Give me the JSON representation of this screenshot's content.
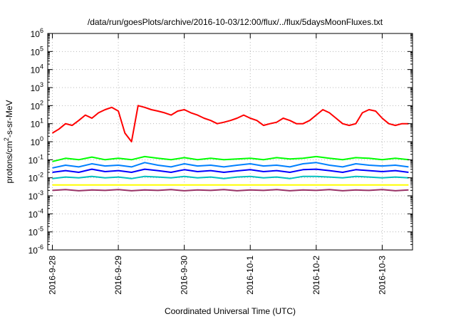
{
  "chart_data": {
    "type": "line",
    "title": "/data/run/goesPlots/archive/2016-10-03/12:00/flux/../flux/5daysMoonFluxes.txt",
    "xlabel": "Coordinated Universal Time (UTC)",
    "ylabel": {
      "pre": "protons/cm",
      "sup": "2",
      "post": "-s-sr-MeV"
    },
    "yscale": "log",
    "ylim_exp": [
      -6,
      6
    ],
    "y_ticks": [
      {
        "base": "10",
        "exp": "6"
      },
      {
        "base": "10",
        "exp": "5"
      },
      {
        "base": "10",
        "exp": "4"
      },
      {
        "base": "10",
        "exp": "3"
      },
      {
        "base": "10",
        "exp": "2"
      },
      {
        "base": "10",
        "exp": "1"
      },
      {
        "base": "10",
        "exp": "0"
      },
      {
        "base": "10",
        "exp": "-1"
      },
      {
        "base": "10",
        "exp": "-2"
      },
      {
        "base": "10",
        "exp": "-3"
      },
      {
        "base": "10",
        "exp": "-4"
      },
      {
        "base": "10",
        "exp": "-5"
      },
      {
        "base": "10",
        "exp": "-6"
      }
    ],
    "x_ticks": [
      "2016-9-28",
      "2016-9-29",
      "2016-9-30",
      "2016-10-1",
      "2016-10-2",
      "2016-10-3"
    ],
    "xlim_days": [
      -0.07,
      5.46
    ],
    "grid": true,
    "series": [
      {
        "color": "#ff0000",
        "x": [
          0.0,
          0.1,
          0.2,
          0.3,
          0.4,
          0.5,
          0.6,
          0.7,
          0.8,
          0.9,
          1.0,
          1.1,
          1.2,
          1.3,
          1.4,
          1.5,
          1.6,
          1.7,
          1.8,
          1.9,
          2.0,
          2.1,
          2.2,
          2.3,
          2.4,
          2.5,
          2.6,
          2.7,
          2.8,
          2.9,
          3.0,
          3.1,
          3.2,
          3.3,
          3.4,
          3.5,
          3.6,
          3.7,
          3.8,
          3.9,
          4.0,
          4.1,
          4.2,
          4.3,
          4.4,
          4.5,
          4.6,
          4.7,
          4.8,
          4.9,
          5.0,
          5.1,
          5.2,
          5.3,
          5.4
        ],
        "y": [
          3,
          5,
          10,
          8,
          15,
          30,
          20,
          40,
          60,
          80,
          50,
          3,
          1,
          100,
          80,
          60,
          50,
          40,
          30,
          50,
          60,
          40,
          30,
          20,
          15,
          10,
          12,
          15,
          20,
          30,
          20,
          15,
          8,
          10,
          12,
          20,
          15,
          10,
          10,
          15,
          30,
          60,
          40,
          20,
          10,
          8,
          10,
          40,
          60,
          50,
          20,
          10,
          8,
          10,
          10
        ]
      },
      {
        "color": "#00ff00",
        "x": [
          0.0,
          0.2,
          0.4,
          0.6,
          0.8,
          1.0,
          1.2,
          1.4,
          1.6,
          1.8,
          2.0,
          2.2,
          2.4,
          2.6,
          2.8,
          3.0,
          3.2,
          3.4,
          3.6,
          3.8,
          4.0,
          4.2,
          4.4,
          4.6,
          4.8,
          5.0,
          5.2,
          5.4
        ],
        "y": [
          0.08,
          0.12,
          0.1,
          0.14,
          0.1,
          0.12,
          0.1,
          0.15,
          0.12,
          0.1,
          0.13,
          0.1,
          0.12,
          0.1,
          0.11,
          0.12,
          0.1,
          0.13,
          0.11,
          0.12,
          0.15,
          0.12,
          0.1,
          0.13,
          0.12,
          0.1,
          0.12,
          0.1
        ]
      },
      {
        "color": "#0080ff",
        "x": [
          0.0,
          0.2,
          0.4,
          0.6,
          0.8,
          1.0,
          1.2,
          1.4,
          1.6,
          1.8,
          2.0,
          2.2,
          2.4,
          2.6,
          2.8,
          3.0,
          3.2,
          3.4,
          3.6,
          3.8,
          4.0,
          4.2,
          4.4,
          4.6,
          4.8,
          5.0,
          5.2,
          5.4
        ],
        "y": [
          0.035,
          0.05,
          0.04,
          0.06,
          0.045,
          0.05,
          0.04,
          0.07,
          0.05,
          0.04,
          0.06,
          0.045,
          0.05,
          0.04,
          0.05,
          0.06,
          0.045,
          0.05,
          0.04,
          0.06,
          0.07,
          0.05,
          0.04,
          0.06,
          0.05,
          0.045,
          0.05,
          0.04
        ]
      },
      {
        "color": "#0000ff",
        "x": [
          0.0,
          0.2,
          0.4,
          0.6,
          0.8,
          1.0,
          1.2,
          1.4,
          1.6,
          1.8,
          2.0,
          2.2,
          2.4,
          2.6,
          2.8,
          3.0,
          3.2,
          3.4,
          3.6,
          3.8,
          4.0,
          4.2,
          4.4,
          4.6,
          4.8,
          5.0,
          5.2,
          5.4
        ],
        "y": [
          0.02,
          0.025,
          0.02,
          0.03,
          0.022,
          0.025,
          0.02,
          0.03,
          0.025,
          0.02,
          0.028,
          0.022,
          0.025,
          0.02,
          0.024,
          0.028,
          0.022,
          0.025,
          0.02,
          0.028,
          0.03,
          0.025,
          0.02,
          0.028,
          0.025,
          0.022,
          0.025,
          0.02
        ]
      },
      {
        "color": "#00c0c0",
        "x": [
          0.0,
          0.2,
          0.4,
          0.6,
          0.8,
          1.0,
          1.2,
          1.4,
          1.6,
          1.8,
          2.0,
          2.2,
          2.4,
          2.6,
          2.8,
          3.0,
          3.2,
          3.4,
          3.6,
          3.8,
          4.0,
          4.2,
          4.4,
          4.6,
          4.8,
          5.0,
          5.2,
          5.4
        ],
        "y": [
          0.009,
          0.011,
          0.01,
          0.012,
          0.01,
          0.011,
          0.009,
          0.012,
          0.011,
          0.01,
          0.012,
          0.01,
          0.011,
          0.009,
          0.011,
          0.012,
          0.01,
          0.011,
          0.009,
          0.012,
          0.012,
          0.011,
          0.01,
          0.012,
          0.011,
          0.01,
          0.011,
          0.01
        ]
      },
      {
        "color": "#ffff00",
        "x": [
          0.0,
          0.5,
          1.0,
          1.5,
          2.0,
          2.5,
          3.0,
          3.5,
          4.0,
          4.5,
          5.0,
          5.4
        ],
        "y": [
          0.004,
          0.004,
          0.004,
          0.004,
          0.004,
          0.004,
          0.004,
          0.004,
          0.004,
          0.004,
          0.004,
          0.004
        ]
      },
      {
        "color": "#993366",
        "x": [
          0.0,
          0.2,
          0.4,
          0.6,
          0.8,
          1.0,
          1.2,
          1.4,
          1.6,
          1.8,
          2.0,
          2.2,
          2.4,
          2.6,
          2.8,
          3.0,
          3.2,
          3.4,
          3.6,
          3.8,
          4.0,
          4.2,
          4.4,
          4.6,
          4.8,
          5.0,
          5.2,
          5.4
        ],
        "y": [
          0.002,
          0.0022,
          0.0019,
          0.0021,
          0.002,
          0.0022,
          0.0019,
          0.0021,
          0.002,
          0.0022,
          0.0019,
          0.0021,
          0.002,
          0.0022,
          0.0019,
          0.0021,
          0.002,
          0.0022,
          0.0019,
          0.0021,
          0.002,
          0.0022,
          0.0019,
          0.0021,
          0.002,
          0.0022,
          0.0019,
          0.0021
        ]
      }
    ]
  }
}
